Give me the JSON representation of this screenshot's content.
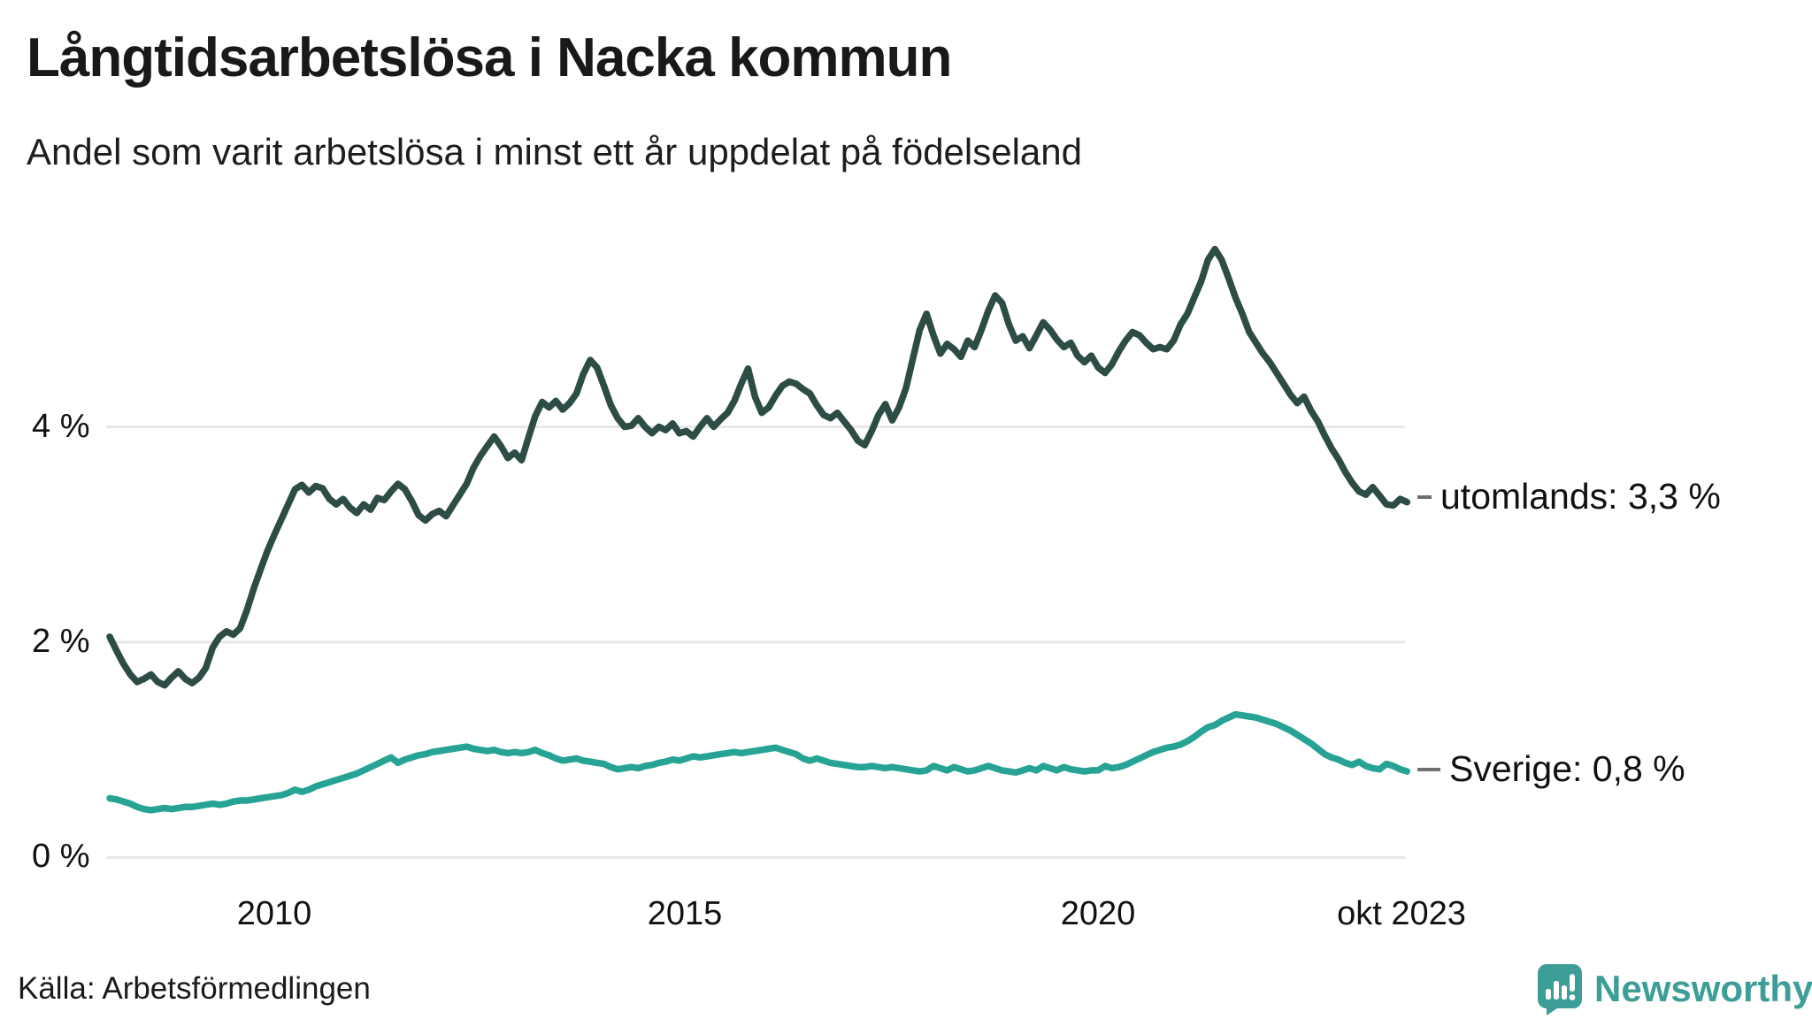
{
  "header": {
    "title": "Långtidsarbetslösa i Nacka kommun",
    "subtitle": "Andel som varit arbetslösa i minst ett år uppdelat på födelseland"
  },
  "chart_data": {
    "type": "line",
    "title": "Långtidsarbetslösa i Nacka kommun",
    "subtitle": "Andel som varit arbetslösa i minst ett år uppdelat på födelseland",
    "x_unit": "month",
    "x_start": "2008-01",
    "x_end": "2023-10",
    "x_tick_labels": [
      "2010",
      "2015",
      "2020",
      "okt 2023"
    ],
    "y_tick_labels": [
      "4 %",
      "2 %",
      "0 %"
    ],
    "y_gridlines": [
      0,
      2,
      4
    ],
    "ylim": [
      0,
      5.9
    ],
    "grid": "horizontal-only",
    "legend_position": "end-of-line-labels",
    "series": [
      {
        "name": "utomlands",
        "end_label": "utomlands: 3,3 %",
        "last_value": "3,3 %",
        "color": "#2c4c45",
        "values": [
          2.05,
          1.92,
          1.8,
          1.7,
          1.63,
          1.66,
          1.7,
          1.63,
          1.6,
          1.67,
          1.73,
          1.66,
          1.62,
          1.67,
          1.76,
          1.95,
          2.05,
          2.1,
          2.07,
          2.13,
          2.3,
          2.5,
          2.68,
          2.85,
          3.0,
          3.14,
          3.28,
          3.42,
          3.46,
          3.39,
          3.45,
          3.43,
          3.33,
          3.28,
          3.33,
          3.25,
          3.2,
          3.28,
          3.23,
          3.34,
          3.32,
          3.4,
          3.47,
          3.42,
          3.31,
          3.18,
          3.13,
          3.19,
          3.22,
          3.17,
          3.27,
          3.37,
          3.47,
          3.62,
          3.73,
          3.82,
          3.91,
          3.82,
          3.71,
          3.76,
          3.69,
          3.9,
          4.1,
          4.23,
          4.18,
          4.24,
          4.16,
          4.22,
          4.31,
          4.49,
          4.62,
          4.55,
          4.38,
          4.2,
          4.08,
          4.0,
          4.01,
          4.08,
          4.0,
          3.94,
          4.0,
          3.97,
          4.03,
          3.94,
          3.96,
          3.91,
          4.0,
          4.08,
          4.0,
          4.07,
          4.13,
          4.24,
          4.4,
          4.54,
          4.28,
          4.13,
          4.18,
          4.29,
          4.38,
          4.42,
          4.4,
          4.35,
          4.31,
          4.2,
          4.11,
          4.08,
          4.13,
          4.05,
          3.97,
          3.87,
          3.83,
          3.96,
          4.11,
          4.21,
          4.06,
          4.18,
          4.36,
          4.63,
          4.9,
          5.05,
          4.85,
          4.68,
          4.77,
          4.72,
          4.65,
          4.8,
          4.74,
          4.9,
          5.08,
          5.22,
          5.15,
          4.95,
          4.8,
          4.84,
          4.73,
          4.85,
          4.97,
          4.9,
          4.81,
          4.74,
          4.78,
          4.66,
          4.6,
          4.66,
          4.55,
          4.5,
          4.58,
          4.7,
          4.8,
          4.88,
          4.85,
          4.78,
          4.72,
          4.74,
          4.72,
          4.8,
          4.95,
          5.05,
          5.2,
          5.35,
          5.55,
          5.65,
          5.55,
          5.38,
          5.2,
          5.05,
          4.88,
          4.78,
          4.68,
          4.6,
          4.5,
          4.4,
          4.3,
          4.22,
          4.28,
          4.15,
          4.05,
          3.92,
          3.8,
          3.7,
          3.58,
          3.48,
          3.4,
          3.37,
          3.44,
          3.36,
          3.28,
          3.27,
          3.33,
          3.3
        ]
      },
      {
        "name": "Sverige",
        "end_label": "Sverige: 0,8 %",
        "last_value": "0,8 %",
        "color": "#27a396",
        "values": [
          0.55,
          0.54,
          0.52,
          0.5,
          0.47,
          0.45,
          0.44,
          0.45,
          0.46,
          0.45,
          0.46,
          0.47,
          0.47,
          0.48,
          0.49,
          0.5,
          0.49,
          0.5,
          0.52,
          0.53,
          0.53,
          0.54,
          0.55,
          0.56,
          0.57,
          0.58,
          0.6,
          0.63,
          0.61,
          0.63,
          0.66,
          0.68,
          0.7,
          0.72,
          0.74,
          0.76,
          0.78,
          0.81,
          0.84,
          0.87,
          0.9,
          0.93,
          0.88,
          0.91,
          0.93,
          0.95,
          0.96,
          0.98,
          0.99,
          1.0,
          1.01,
          1.02,
          1.03,
          1.01,
          1.0,
          0.99,
          1.0,
          0.98,
          0.97,
          0.98,
          0.97,
          0.98,
          1.0,
          0.97,
          0.95,
          0.92,
          0.9,
          0.91,
          0.92,
          0.9,
          0.89,
          0.88,
          0.87,
          0.84,
          0.82,
          0.83,
          0.84,
          0.83,
          0.85,
          0.86,
          0.88,
          0.89,
          0.91,
          0.9,
          0.92,
          0.94,
          0.93,
          0.94,
          0.95,
          0.96,
          0.97,
          0.98,
          0.97,
          0.98,
          0.99,
          1.0,
          1.01,
          1.02,
          1.0,
          0.98,
          0.96,
          0.92,
          0.9,
          0.92,
          0.9,
          0.88,
          0.87,
          0.86,
          0.85,
          0.84,
          0.84,
          0.85,
          0.84,
          0.83,
          0.84,
          0.83,
          0.82,
          0.81,
          0.8,
          0.81,
          0.85,
          0.83,
          0.81,
          0.84,
          0.82,
          0.8,
          0.81,
          0.83,
          0.85,
          0.83,
          0.81,
          0.8,
          0.79,
          0.81,
          0.83,
          0.81,
          0.85,
          0.83,
          0.81,
          0.84,
          0.82,
          0.81,
          0.8,
          0.81,
          0.81,
          0.85,
          0.83,
          0.84,
          0.86,
          0.89,
          0.92,
          0.95,
          0.98,
          1.0,
          1.02,
          1.03,
          1.05,
          1.08,
          1.12,
          1.17,
          1.21,
          1.23,
          1.27,
          1.3,
          1.33,
          1.32,
          1.31,
          1.3,
          1.28,
          1.26,
          1.24,
          1.21,
          1.18,
          1.14,
          1.1,
          1.06,
          1.01,
          0.96,
          0.93,
          0.91,
          0.88,
          0.86,
          0.89,
          0.85,
          0.83,
          0.82,
          0.87,
          0.85,
          0.82,
          0.8
        ]
      }
    ]
  },
  "footer": {
    "source": "Källa: Arbetsförmedlingen",
    "logo_text": "Newsworthy"
  },
  "colors": {
    "line_utomlands": "#2c4c45",
    "line_sverige": "#27a396",
    "brand_teal": "#3d9e97",
    "gridline": "#e8e8e8",
    "text": "#1a1a1a"
  }
}
